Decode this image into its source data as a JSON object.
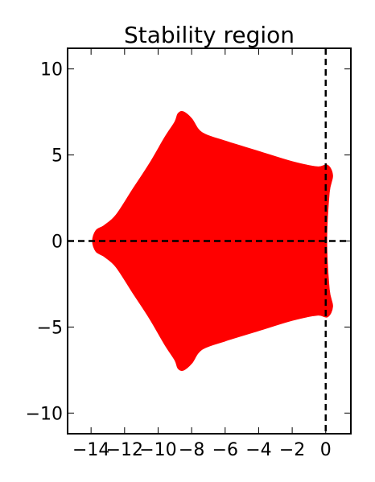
{
  "chart_data": {
    "type": "area",
    "title": "Stability region",
    "xlabel": "",
    "ylabel": "",
    "xlim": [
      -15.4,
      1.5
    ],
    "ylim": [
      -11.2,
      11.2
    ],
    "x_ticks": [
      -14,
      -12,
      -10,
      -8,
      -6,
      -4,
      -2,
      0
    ],
    "x_tick_labels": [
      "−14",
      "−12",
      "−10",
      "−8",
      "−6",
      "−4",
      "−2",
      "0"
    ],
    "y_ticks": [
      -10,
      -5,
      0,
      5,
      10
    ],
    "y_tick_labels": [
      "−10",
      "−5",
      "0",
      "5",
      "10"
    ],
    "grid": false,
    "legend": "none",
    "fill_color": "#ff0000",
    "reference_lines": [
      {
        "orientation": "horizontal",
        "value": 0,
        "style": "dashed",
        "color": "#000000"
      },
      {
        "orientation": "vertical",
        "value": 0,
        "style": "dashed",
        "color": "#000000"
      }
    ],
    "region_boundary": {
      "x": [
        -13.7,
        -13.9,
        -13.7,
        -13.2,
        -12.5,
        -11.5,
        -10.5,
        -9.6,
        -9.0,
        -8.8,
        -8.5,
        -8.0,
        -7.4,
        -6.0,
        -4.0,
        -2.0,
        -0.5,
        0.1,
        0.4,
        0.2,
        0.05,
        0.2,
        0.4,
        0.1,
        -0.5,
        -2.0,
        -4.0,
        -6.0,
        -7.4,
        -8.0,
        -8.5,
        -8.8,
        -9.0,
        -9.6,
        -10.5,
        -11.5,
        -12.5,
        -13.2,
        -13.7
      ],
      "y": [
        0.6,
        0.0,
        -0.6,
        -0.9,
        -1.5,
        -3.0,
        -4.5,
        -6.0,
        -6.9,
        -7.4,
        -7.5,
        -7.1,
        -6.3,
        -5.8,
        -5.2,
        -4.6,
        -4.3,
        -4.4,
        -3.8,
        -2.8,
        0.0,
        2.8,
        3.8,
        4.4,
        4.3,
        4.6,
        5.2,
        5.8,
        6.3,
        7.1,
        7.5,
        7.4,
        6.9,
        6.0,
        4.5,
        3.0,
        1.5,
        0.9,
        0.6
      ]
    }
  }
}
